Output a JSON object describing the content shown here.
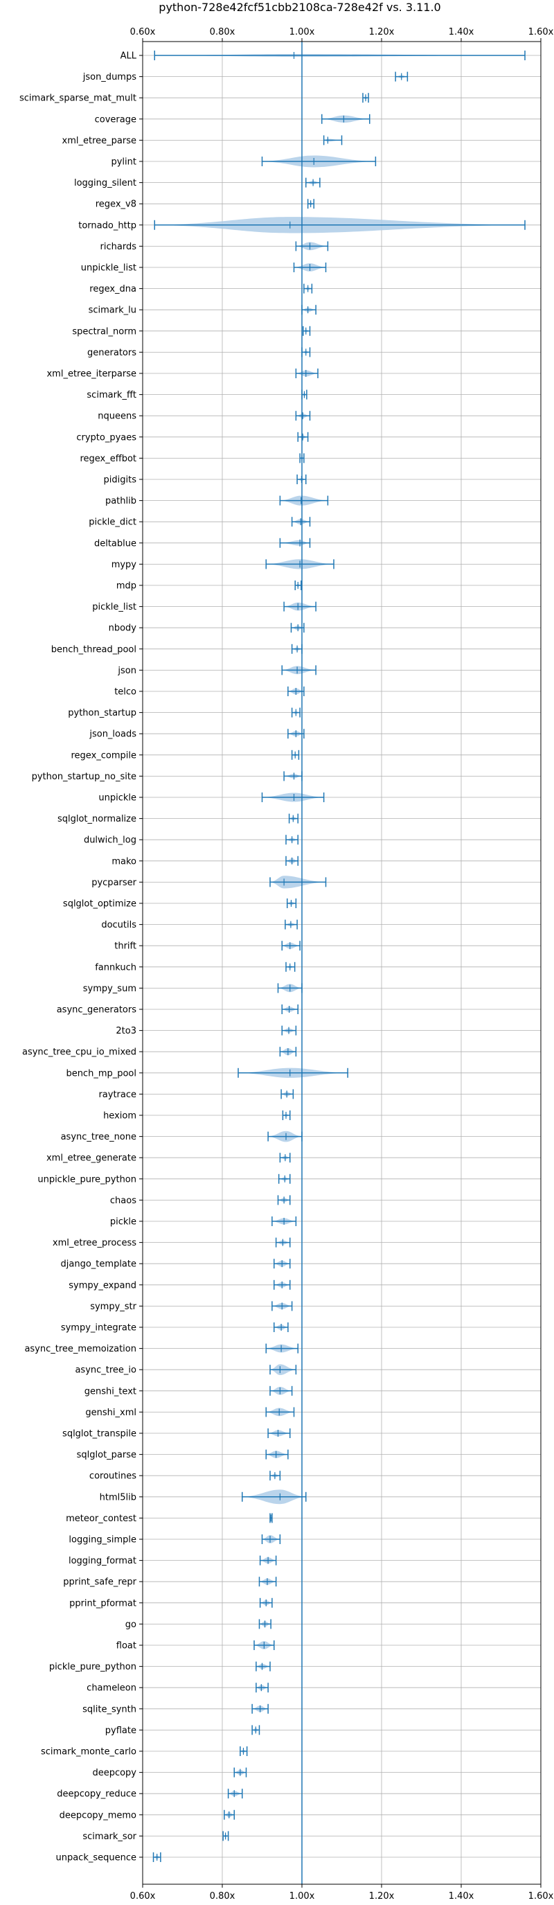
{
  "chart_data": {
    "type": "violin",
    "title": "python-728e42fcf51cbb2108ca-728e42f vs. 3.11.0",
    "xlabel": "",
    "ylabel": "",
    "xlim": [
      0.6,
      1.6
    ],
    "xticks": [
      0.6,
      0.8,
      1.0,
      1.2,
      1.4,
      1.6
    ],
    "xtick_labels": [
      "0.60x",
      "0.80x",
      "1.00x",
      "1.20x",
      "1.40x",
      "1.60x"
    ],
    "reference_line": 1.0,
    "grid": true,
    "colors": {
      "violin": "#aecde8",
      "stroke": "#1f77b4",
      "grid": "#b0b0b0"
    },
    "series": [
      {
        "name": "ALL",
        "min": 0.63,
        "max": 1.56,
        "center": 0.98,
        "width": 0.05
      },
      {
        "name": "json_dumps",
        "min": 1.235,
        "max": 1.265,
        "center": 1.25,
        "width": 0.06
      },
      {
        "name": "scimark_sparse_mat_mult",
        "min": 1.153,
        "max": 1.167,
        "center": 1.16,
        "width": 0.06
      },
      {
        "name": "coverage",
        "min": 1.05,
        "max": 1.17,
        "center": 1.105,
        "width": 0.4
      },
      {
        "name": "xml_etree_parse",
        "min": 1.055,
        "max": 1.1,
        "center": 1.065,
        "width": 0.15
      },
      {
        "name": "pylint",
        "min": 0.9,
        "max": 1.185,
        "center": 1.03,
        "width": 0.65
      },
      {
        "name": "logging_silent",
        "min": 1.01,
        "max": 1.045,
        "center": 1.028,
        "width": 0.2
      },
      {
        "name": "regex_v8",
        "min": 1.015,
        "max": 1.03,
        "center": 1.022,
        "width": 0.06
      },
      {
        "name": "tornado_http",
        "min": 0.63,
        "max": 1.56,
        "center": 0.97,
        "width": 0.9
      },
      {
        "name": "richards",
        "min": 0.985,
        "max": 1.065,
        "center": 1.02,
        "width": 0.45
      },
      {
        "name": "unpickle_list",
        "min": 0.98,
        "max": 1.06,
        "center": 1.02,
        "width": 0.45
      },
      {
        "name": "regex_dna",
        "min": 1.005,
        "max": 1.025,
        "center": 1.015,
        "width": 0.15
      },
      {
        "name": "scimark_lu",
        "min": 1.0,
        "max": 1.035,
        "center": 1.015,
        "width": 0.25
      },
      {
        "name": "spectral_norm",
        "min": 1.003,
        "max": 1.02,
        "center": 1.01,
        "width": 0.15
      },
      {
        "name": "generators",
        "min": 1.0,
        "max": 1.02,
        "center": 1.01,
        "width": 0.15
      },
      {
        "name": "xml_etree_iterparse",
        "min": 0.985,
        "max": 1.04,
        "center": 1.01,
        "width": 0.35
      },
      {
        "name": "scimark_fft",
        "min": 1.0,
        "max": 1.012,
        "center": 1.006,
        "width": 0.1
      },
      {
        "name": "nqueens",
        "min": 0.985,
        "max": 1.02,
        "center": 1.002,
        "width": 0.25
      },
      {
        "name": "crypto_pyaes",
        "min": 0.99,
        "max": 1.015,
        "center": 1.002,
        "width": 0.2
      },
      {
        "name": "regex_effbot",
        "min": 0.995,
        "max": 1.005,
        "center": 1.0,
        "width": 0.08
      },
      {
        "name": "pidigits",
        "min": 0.988,
        "max": 1.01,
        "center": 0.999,
        "width": 0.15
      },
      {
        "name": "pathlib",
        "min": 0.945,
        "max": 1.065,
        "center": 0.998,
        "width": 0.55
      },
      {
        "name": "pickle_dict",
        "min": 0.975,
        "max": 1.02,
        "center": 0.997,
        "width": 0.3
      },
      {
        "name": "deltablue",
        "min": 0.945,
        "max": 1.02,
        "center": 0.995,
        "width": 0.3
      },
      {
        "name": "mypy",
        "min": 0.91,
        "max": 1.08,
        "center": 0.995,
        "width": 0.55
      },
      {
        "name": "mdp",
        "min": 0.983,
        "max": 0.998,
        "center": 0.99,
        "width": 0.1
      },
      {
        "name": "pickle_list",
        "min": 0.955,
        "max": 1.035,
        "center": 0.99,
        "width": 0.45
      },
      {
        "name": "nbody",
        "min": 0.973,
        "max": 1.005,
        "center": 0.99,
        "width": 0.25
      },
      {
        "name": "bench_thread_pool",
        "min": 0.975,
        "max": 1.0,
        "center": 0.988,
        "width": 0.2
      },
      {
        "name": "json",
        "min": 0.95,
        "max": 1.035,
        "center": 0.988,
        "width": 0.45
      },
      {
        "name": "telco",
        "min": 0.965,
        "max": 1.005,
        "center": 0.985,
        "width": 0.35
      },
      {
        "name": "python_startup",
        "min": 0.975,
        "max": 0.995,
        "center": 0.985,
        "width": 0.15
      },
      {
        "name": "json_loads",
        "min": 0.965,
        "max": 1.005,
        "center": 0.985,
        "width": 0.3
      },
      {
        "name": "regex_compile",
        "min": 0.975,
        "max": 0.992,
        "center": 0.983,
        "width": 0.15
      },
      {
        "name": "python_startup_no_site",
        "min": 0.955,
        "max": 1.0,
        "center": 0.98,
        "width": 0.25
      },
      {
        "name": "unpickle",
        "min": 0.9,
        "max": 1.055,
        "center": 0.98,
        "width": 0.5
      },
      {
        "name": "sqlglot_normalize",
        "min": 0.968,
        "max": 0.99,
        "center": 0.978,
        "width": 0.2
      },
      {
        "name": "dulwich_log",
        "min": 0.96,
        "max": 0.99,
        "center": 0.975,
        "width": 0.2
      },
      {
        "name": "mako",
        "min": 0.96,
        "max": 0.99,
        "center": 0.975,
        "width": 0.3
      },
      {
        "name": "pycparser",
        "min": 0.92,
        "max": 1.06,
        "center": 0.955,
        "width": 0.7
      },
      {
        "name": "sqlglot_optimize",
        "min": 0.963,
        "max": 0.985,
        "center": 0.973,
        "width": 0.2
      },
      {
        "name": "docutils",
        "min": 0.958,
        "max": 0.988,
        "center": 0.972,
        "width": 0.2
      },
      {
        "name": "thrift",
        "min": 0.95,
        "max": 0.995,
        "center": 0.97,
        "width": 0.35
      },
      {
        "name": "fannkuch",
        "min": 0.96,
        "max": 0.982,
        "center": 0.97,
        "width": 0.15
      },
      {
        "name": "sympy_sum",
        "min": 0.94,
        "max": 1.0,
        "center": 0.97,
        "width": 0.45
      },
      {
        "name": "async_generators",
        "min": 0.95,
        "max": 0.99,
        "center": 0.968,
        "width": 0.3
      },
      {
        "name": "2to3",
        "min": 0.95,
        "max": 0.985,
        "center": 0.967,
        "width": 0.25
      },
      {
        "name": "async_tree_cpu_io_mixed",
        "min": 0.945,
        "max": 0.985,
        "center": 0.965,
        "width": 0.4
      },
      {
        "name": "bench_mp_pool",
        "min": 0.84,
        "max": 1.115,
        "center": 0.97,
        "width": 0.55
      },
      {
        "name": "raytrace",
        "min": 0.948,
        "max": 0.978,
        "center": 0.962,
        "width": 0.25
      },
      {
        "name": "hexiom",
        "min": 0.952,
        "max": 0.97,
        "center": 0.96,
        "width": 0.15
      },
      {
        "name": "async_tree_none",
        "min": 0.915,
        "max": 1.0,
        "center": 0.96,
        "width": 0.6
      },
      {
        "name": "xml_etree_generate",
        "min": 0.945,
        "max": 0.97,
        "center": 0.958,
        "width": 0.2
      },
      {
        "name": "unpickle_pure_python",
        "min": 0.942,
        "max": 0.97,
        "center": 0.957,
        "width": 0.2
      },
      {
        "name": "chaos",
        "min": 0.94,
        "max": 0.97,
        "center": 0.955,
        "width": 0.25
      },
      {
        "name": "pickle",
        "min": 0.925,
        "max": 0.985,
        "center": 0.955,
        "width": 0.35
      },
      {
        "name": "xml_etree_process",
        "min": 0.935,
        "max": 0.97,
        "center": 0.952,
        "width": 0.25
      },
      {
        "name": "django_template",
        "min": 0.93,
        "max": 0.97,
        "center": 0.95,
        "width": 0.35
      },
      {
        "name": "sympy_expand",
        "min": 0.93,
        "max": 0.97,
        "center": 0.95,
        "width": 0.3
      },
      {
        "name": "sympy_str",
        "min": 0.925,
        "max": 0.975,
        "center": 0.95,
        "width": 0.35
      },
      {
        "name": "sympy_integrate",
        "min": 0.93,
        "max": 0.965,
        "center": 0.948,
        "width": 0.3
      },
      {
        "name": "async_tree_memoization",
        "min": 0.91,
        "max": 0.99,
        "center": 0.948,
        "width": 0.45
      },
      {
        "name": "async_tree_io",
        "min": 0.92,
        "max": 0.985,
        "center": 0.945,
        "width": 0.6
      },
      {
        "name": "genshi_text",
        "min": 0.92,
        "max": 0.975,
        "center": 0.945,
        "width": 0.45
      },
      {
        "name": "genshi_xml",
        "min": 0.91,
        "max": 0.98,
        "center": 0.943,
        "width": 0.45
      },
      {
        "name": "sqlglot_transpile",
        "min": 0.915,
        "max": 0.97,
        "center": 0.94,
        "width": 0.35
      },
      {
        "name": "sqlglot_parse",
        "min": 0.91,
        "max": 0.965,
        "center": 0.935,
        "width": 0.4
      },
      {
        "name": "coroutines",
        "min": 0.92,
        "max": 0.945,
        "center": 0.932,
        "width": 0.2
      },
      {
        "name": "html5lib",
        "min": 0.85,
        "max": 1.01,
        "center": 0.945,
        "width": 0.8
      },
      {
        "name": "meteor_contest",
        "min": 0.92,
        "max": 0.925,
        "center": 0.922,
        "width": 0.08
      },
      {
        "name": "logging_simple",
        "min": 0.9,
        "max": 0.945,
        "center": 0.92,
        "width": 0.45
      },
      {
        "name": "logging_format",
        "min": 0.895,
        "max": 0.935,
        "center": 0.915,
        "width": 0.35
      },
      {
        "name": "pprint_safe_repr",
        "min": 0.893,
        "max": 0.935,
        "center": 0.913,
        "width": 0.35
      },
      {
        "name": "pprint_pformat",
        "min": 0.895,
        "max": 0.925,
        "center": 0.91,
        "width": 0.3
      },
      {
        "name": "go",
        "min": 0.893,
        "max": 0.922,
        "center": 0.907,
        "width": 0.3
      },
      {
        "name": "float",
        "min": 0.88,
        "max": 0.93,
        "center": 0.905,
        "width": 0.45
      },
      {
        "name": "pickle_pure_python",
        "min": 0.885,
        "max": 0.92,
        "center": 0.9,
        "width": 0.3
      },
      {
        "name": "chameleon",
        "min": 0.885,
        "max": 0.915,
        "center": 0.898,
        "width": 0.3
      },
      {
        "name": "sqlite_synth",
        "min": 0.875,
        "max": 0.915,
        "center": 0.895,
        "width": 0.35
      },
      {
        "name": "pyflate",
        "min": 0.875,
        "max": 0.893,
        "center": 0.884,
        "width": 0.2
      },
      {
        "name": "scimark_monte_carlo",
        "min": 0.845,
        "max": 0.862,
        "center": 0.853,
        "width": 0.15
      },
      {
        "name": "deepcopy",
        "min": 0.83,
        "max": 0.86,
        "center": 0.845,
        "width": 0.3
      },
      {
        "name": "deepcopy_reduce",
        "min": 0.815,
        "max": 0.85,
        "center": 0.83,
        "width": 0.3
      },
      {
        "name": "deepcopy_memo",
        "min": 0.805,
        "max": 0.83,
        "center": 0.817,
        "width": 0.3
      },
      {
        "name": "scimark_sor",
        "min": 0.802,
        "max": 0.815,
        "center": 0.808,
        "width": 0.1
      },
      {
        "name": "unpack_sequence",
        "min": 0.627,
        "max": 0.645,
        "center": 0.636,
        "width": 0.2
      }
    ]
  }
}
